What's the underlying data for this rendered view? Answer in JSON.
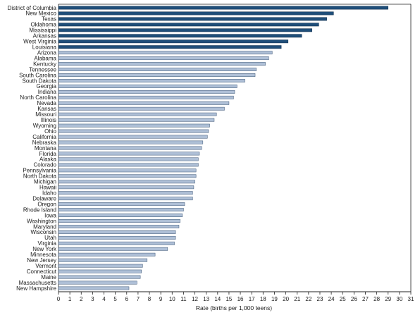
{
  "chart_data": {
    "type": "bar",
    "orientation": "horizontal",
    "categories": [
      "District of Columbia",
      "New Mexico",
      "Texas",
      "Oklahoma",
      "Mississippi",
      "Arkansas",
      "West Virginia",
      "Louisiana",
      "Arizona",
      "Alabama",
      "Kentucky",
      "Tennessee",
      "South Carolina",
      "South Dakota",
      "Georgia",
      "Indiana",
      "North Carolina",
      "Nevada",
      "Kansas",
      "Missouri",
      "Illinois",
      "Wyoming",
      "Ohio",
      "California",
      "Nebraska",
      "Montana",
      "Florida",
      "Alaska",
      "Colorado",
      "Pennsylvania",
      "North Dakota",
      "Michigan",
      "Hawaii",
      "Idaho",
      "Delaware",
      "Oregon",
      "Rhode Island",
      "Iowa",
      "Washington",
      "Maryland",
      "Wisconsin",
      "Utah",
      "Virginia",
      "New York",
      "Minnesota",
      "New Jersey",
      "Vermont",
      "Connecticut",
      "Maine",
      "Massachusetts",
      "New Hampshire"
    ],
    "values": [
      29.0,
      24.2,
      23.6,
      22.9,
      22.3,
      21.4,
      20.2,
      19.6,
      18.8,
      18.5,
      18.2,
      17.4,
      17.3,
      16.4,
      15.7,
      15.5,
      15.4,
      15.0,
      14.6,
      13.9,
      13.7,
      13.3,
      13.2,
      13.1,
      12.7,
      12.6,
      12.4,
      12.3,
      12.3,
      12.1,
      12.1,
      12.0,
      11.9,
      11.8,
      11.8,
      11.1,
      11.0,
      10.9,
      10.7,
      10.6,
      10.3,
      10.3,
      10.2,
      9.6,
      8.5,
      7.8,
      7.4,
      7.3,
      7.2,
      6.9,
      6.2
    ],
    "highlight_count": 8,
    "xlabel": "Rate (births per 1,000 teens)",
    "ylabel": "",
    "title": "",
    "xlim": [
      0,
      31
    ],
    "x_ticks": [
      "0",
      "1",
      "2",
      "3",
      "4",
      "5",
      "6",
      "7",
      "8",
      "9",
      "10",
      "11",
      "12",
      "13",
      "14",
      "15",
      "16",
      "17",
      "18",
      "19",
      "20",
      "21",
      "22",
      "23",
      "24",
      "25",
      "26",
      "27",
      "28",
      "29",
      "30",
      "31"
    ],
    "grid": false,
    "colors": {
      "highlight": "#1f4e79",
      "highlight_edge": "#0e2a47",
      "regular": "#aebfd6",
      "regular_edge": "#3b5575",
      "axis": "#222222"
    }
  }
}
